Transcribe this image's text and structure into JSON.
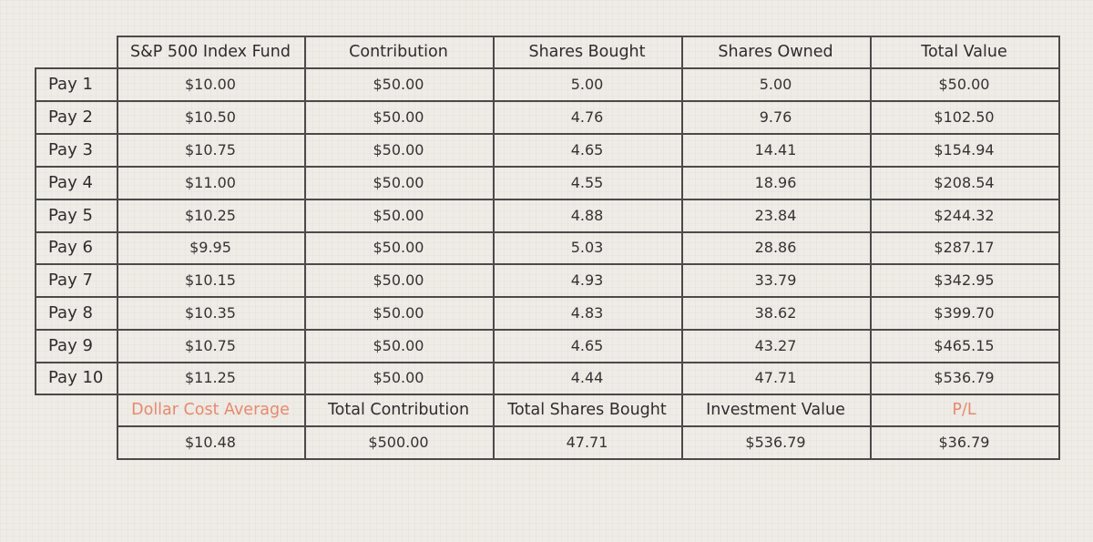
{
  "table": {
    "headers": [
      "S&P 500 Index Fund",
      "Contribution",
      "Shares Bought",
      "Shares Owned",
      "Total Value"
    ],
    "rows": [
      {
        "label": "Pay 1",
        "cells": [
          "$10.00",
          "$50.00",
          "5.00",
          "5.00",
          "$50.00"
        ]
      },
      {
        "label": "Pay 2",
        "cells": [
          "$10.50",
          "$50.00",
          "4.76",
          "9.76",
          "$102.50"
        ]
      },
      {
        "label": "Pay 3",
        "cells": [
          "$10.75",
          "$50.00",
          "4.65",
          "14.41",
          "$154.94"
        ]
      },
      {
        "label": "Pay 4",
        "cells": [
          "$11.00",
          "$50.00",
          "4.55",
          "18.96",
          "$208.54"
        ]
      },
      {
        "label": "Pay 5",
        "cells": [
          "$10.25",
          "$50.00",
          "4.88",
          "23.84",
          "$244.32"
        ]
      },
      {
        "label": "Pay 6",
        "cells": [
          "$9.95",
          "$50.00",
          "5.03",
          "28.86",
          "$287.17"
        ]
      },
      {
        "label": "Pay 7",
        "cells": [
          "$10.15",
          "$50.00",
          "4.93",
          "33.79",
          "$342.95"
        ]
      },
      {
        "label": "Pay 8",
        "cells": [
          "$10.35",
          "$50.00",
          "4.83",
          "38.62",
          "$399.70"
        ]
      },
      {
        "label": "Pay 9",
        "cells": [
          "$10.75",
          "$50.00",
          "4.65",
          "43.27",
          "$465.15"
        ]
      },
      {
        "label": "Pay 10",
        "cells": [
          "$11.25",
          "$50.00",
          "4.44",
          "47.71",
          "$536.79"
        ]
      }
    ],
    "summary_headers": [
      "Dollar Cost Average",
      "Total Contribution",
      "Total Shares Bought",
      "Investment Value",
      "P/L"
    ],
    "summary_values": [
      "$10.48",
      "$500.00",
      "47.71",
      "$536.79",
      "$36.79"
    ],
    "accent_color": "#e58a6e"
  }
}
